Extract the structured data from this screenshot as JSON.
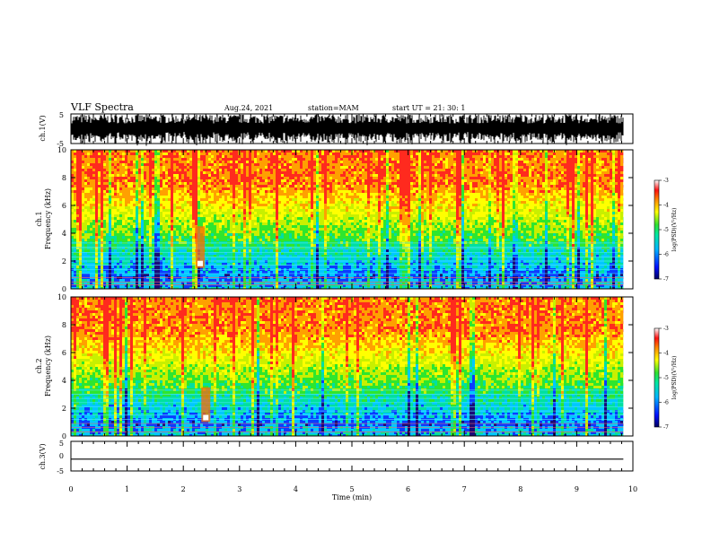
{
  "header": {
    "title": "VLF Spectra",
    "date": "Aug.24, 2021",
    "station": "station=MAM",
    "start": "start UT =  21: 30: 1"
  },
  "chart_data": [
    {
      "type": "line",
      "panel": "ch1-waveform",
      "ylabel": "ch.1(V)",
      "ylim": [
        -5,
        5
      ],
      "yticks": [
        "5",
        "-5"
      ],
      "xlim": [
        0,
        10
      ],
      "trace_color": "#000000",
      "description_values": {
        "baseline": 0,
        "min": -5,
        "max": 5
      }
    },
    {
      "type": "heatmap",
      "panel": "ch1-spectrogram",
      "ylabel": "ch.1",
      "ylabel2": "Frequency (kHz)",
      "ylim": [
        0,
        10
      ],
      "yticks": [
        "0",
        "2",
        "4",
        "6",
        "8",
        "10"
      ],
      "xlim": [
        0,
        10
      ],
      "data_end_min": 9.83,
      "colorbar": {
        "label": "log(PSD)(V²/Hz)",
        "ticks": [
          "-3",
          "-4",
          "-5",
          "-6",
          "-7"
        ],
        "range": [
          -7,
          -3
        ]
      },
      "lines_khz": [
        0.3,
        0.5,
        0.8,
        1.1,
        1.4,
        1.7,
        2.0,
        2.3,
        2.6,
        2.9,
        3.0,
        3.3
      ],
      "event": {
        "t_min": 2.3,
        "f_khz": [
          1.5,
          4.5
        ]
      }
    },
    {
      "type": "heatmap",
      "panel": "ch2-spectrogram",
      "ylabel": "ch.2",
      "ylabel2": "Frequency (kHz)",
      "ylim": [
        0,
        10
      ],
      "yticks": [
        "0",
        "2",
        "4",
        "6",
        "8",
        "10"
      ],
      "xlim": [
        0,
        10
      ],
      "data_end_min": 9.83,
      "colorbar": {
        "label": "log(PSD)(V²/Hz)",
        "ticks": [
          "-3",
          "-4",
          "-5",
          "-6",
          "-7"
        ],
        "range": [
          -7,
          -3
        ]
      },
      "lines_khz": [
        0.3,
        0.6,
        0.9,
        1.2,
        1.5,
        1.8,
        2.1,
        2.4,
        2.7,
        3.0,
        3.3
      ],
      "event": {
        "t_min": 2.4,
        "f_khz": [
          1.0,
          3.5
        ]
      }
    },
    {
      "type": "line",
      "panel": "ch3-waveform",
      "ylabel": "ch.3(V)",
      "ylim": [
        -5,
        5
      ],
      "yticks": [
        "5",
        "0",
        "-5"
      ],
      "xlim": [
        0,
        10
      ],
      "x": [
        0,
        9.83
      ],
      "y": [
        -1,
        -1
      ],
      "trace_color": "#000000"
    }
  ],
  "xaxis": {
    "label": "Time (min)",
    "ticks": [
      "0",
      "1",
      "2",
      "3",
      "4",
      "5",
      "6",
      "7",
      "8",
      "9",
      "10"
    ]
  },
  "colormap": [
    "#1a0a78",
    "#0a3cff",
    "#00c8ff",
    "#00e0a0",
    "#2ee62e",
    "#c8f000",
    "#ffff00",
    "#ffa000",
    "#ff2a1e",
    "#ff6b6b",
    "#ffffff"
  ]
}
